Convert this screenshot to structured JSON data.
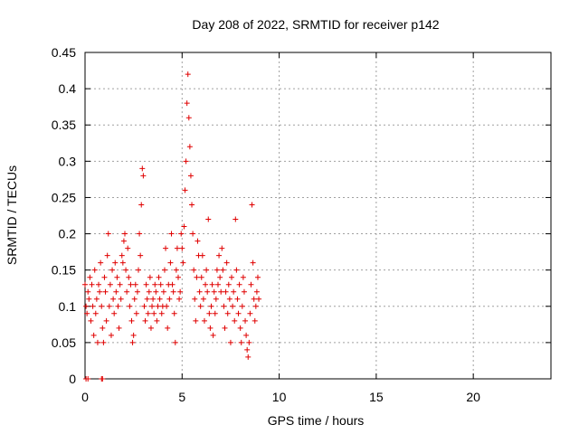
{
  "chart_data": {
    "type": "scatter",
    "title": "Day 208 of 2022, SRMTID for receiver p142",
    "xlabel": "GPS time / hours",
    "ylabel": "SRMTID / TECUs",
    "xlim": [
      0,
      24
    ],
    "ylim": [
      0,
      0.45
    ],
    "xticks": [
      "0",
      "5",
      "10",
      "15",
      "20"
    ],
    "yticks": [
      "0",
      "0.05",
      "0.1",
      "0.15",
      "0.2",
      "0.25",
      "0.3",
      "0.35",
      "0.4",
      "0.45"
    ],
    "grid": true,
    "marker": "+",
    "color": "#e00000",
    "series": [
      {
        "name": "SRMTID",
        "points": [
          [
            0.05,
            0.0
          ],
          [
            0.15,
            0.0
          ],
          [
            0.85,
            0.0
          ],
          [
            0.9,
            0.0
          ],
          [
            0.0,
            0.13
          ],
          [
            0.05,
            0.1
          ],
          [
            0.1,
            0.09
          ],
          [
            0.15,
            0.12
          ],
          [
            0.2,
            0.11
          ],
          [
            0.25,
            0.14
          ],
          [
            0.3,
            0.08
          ],
          [
            0.35,
            0.13
          ],
          [
            0.4,
            0.1
          ],
          [
            0.45,
            0.06
          ],
          [
            0.5,
            0.15
          ],
          [
            0.55,
            0.09
          ],
          [
            0.6,
            0.11
          ],
          [
            0.65,
            0.05
          ],
          [
            0.7,
            0.13
          ],
          [
            0.75,
            0.12
          ],
          [
            0.8,
            0.16
          ],
          [
            0.85,
            0.1
          ],
          [
            0.9,
            0.07
          ],
          [
            0.95,
            0.05
          ],
          [
            1.0,
            0.14
          ],
          [
            1.05,
            0.12
          ],
          [
            1.1,
            0.08
          ],
          [
            1.15,
            0.17
          ],
          [
            1.2,
            0.2
          ],
          [
            1.25,
            0.1
          ],
          [
            1.3,
            0.13
          ],
          [
            1.35,
            0.06
          ],
          [
            1.4,
            0.15
          ],
          [
            1.45,
            0.11
          ],
          [
            1.5,
            0.09
          ],
          [
            1.55,
            0.16
          ],
          [
            1.6,
            0.12
          ],
          [
            1.65,
            0.14
          ],
          [
            1.7,
            0.1
          ],
          [
            1.75,
            0.07
          ],
          [
            1.8,
            0.13
          ],
          [
            1.85,
            0.11
          ],
          [
            1.9,
            0.17
          ],
          [
            1.95,
            0.16
          ],
          [
            2.0,
            0.19
          ],
          [
            2.05,
            0.2
          ],
          [
            2.1,
            0.15
          ],
          [
            2.15,
            0.12
          ],
          [
            2.2,
            0.18
          ],
          [
            2.25,
            0.14
          ],
          [
            2.3,
            0.1
          ],
          [
            2.35,
            0.13
          ],
          [
            2.4,
            0.08
          ],
          [
            2.45,
            0.05
          ],
          [
            2.5,
            0.06
          ],
          [
            2.55,
            0.11
          ],
          [
            2.6,
            0.13
          ],
          [
            2.65,
            0.09
          ],
          [
            2.7,
            0.12
          ],
          [
            2.75,
            0.15
          ],
          [
            2.8,
            0.2
          ],
          [
            2.85,
            0.17
          ],
          [
            2.9,
            0.24
          ],
          [
            2.95,
            0.29
          ],
          [
            3.0,
            0.28
          ],
          [
            3.05,
            0.1
          ],
          [
            3.1,
            0.08
          ],
          [
            3.15,
            0.13
          ],
          [
            3.2,
            0.11
          ],
          [
            3.25,
            0.09
          ],
          [
            3.3,
            0.12
          ],
          [
            3.35,
            0.14
          ],
          [
            3.4,
            0.07
          ],
          [
            3.45,
            0.1
          ],
          [
            3.5,
            0.11
          ],
          [
            3.55,
            0.09
          ],
          [
            3.6,
            0.13
          ],
          [
            3.65,
            0.12
          ],
          [
            3.7,
            0.08
          ],
          [
            3.75,
            0.1
          ],
          [
            3.8,
            0.14
          ],
          [
            3.85,
            0.11
          ],
          [
            3.9,
            0.13
          ],
          [
            3.95,
            0.09
          ],
          [
            4.0,
            0.1
          ],
          [
            4.05,
            0.12
          ],
          [
            4.1,
            0.15
          ],
          [
            4.15,
            0.18
          ],
          [
            4.2,
            0.1
          ],
          [
            4.25,
            0.07
          ],
          [
            4.3,
            0.13
          ],
          [
            4.35,
            0.11
          ],
          [
            4.4,
            0.16
          ],
          [
            4.45,
            0.2
          ],
          [
            4.5,
            0.13
          ],
          [
            4.55,
            0.12
          ],
          [
            4.6,
            0.09
          ],
          [
            4.65,
            0.05
          ],
          [
            4.7,
            0.15
          ],
          [
            4.75,
            0.18
          ],
          [
            4.8,
            0.14
          ],
          [
            4.85,
            0.11
          ],
          [
            4.9,
            0.12
          ],
          [
            4.95,
            0.2
          ],
          [
            5.0,
            0.18
          ],
          [
            5.05,
            0.16
          ],
          [
            5.1,
            0.21
          ],
          [
            5.15,
            0.26
          ],
          [
            5.2,
            0.3
          ],
          [
            5.25,
            0.38
          ],
          [
            5.3,
            0.42
          ],
          [
            5.35,
            0.36
          ],
          [
            5.4,
            0.32
          ],
          [
            5.45,
            0.28
          ],
          [
            5.5,
            0.24
          ],
          [
            5.55,
            0.2
          ],
          [
            5.6,
            0.15
          ],
          [
            5.65,
            0.11
          ],
          [
            5.7,
            0.08
          ],
          [
            5.75,
            0.14
          ],
          [
            5.8,
            0.19
          ],
          [
            5.85,
            0.17
          ],
          [
            5.9,
            0.12
          ],
          [
            5.95,
            0.1
          ],
          [
            6.0,
            0.14
          ],
          [
            6.05,
            0.17
          ],
          [
            6.1,
            0.11
          ],
          [
            6.15,
            0.08
          ],
          [
            6.2,
            0.13
          ],
          [
            6.25,
            0.15
          ],
          [
            6.3,
            0.12
          ],
          [
            6.35,
            0.22
          ],
          [
            6.4,
            0.09
          ],
          [
            6.45,
            0.07
          ],
          [
            6.5,
            0.1
          ],
          [
            6.55,
            0.13
          ],
          [
            6.6,
            0.06
          ],
          [
            6.65,
            0.12
          ],
          [
            6.7,
            0.09
          ],
          [
            6.75,
            0.11
          ],
          [
            6.8,
            0.15
          ],
          [
            6.85,
            0.13
          ],
          [
            6.9,
            0.17
          ],
          [
            6.95,
            0.14
          ],
          [
            7.0,
            0.12
          ],
          [
            7.05,
            0.18
          ],
          [
            7.1,
            0.15
          ],
          [
            7.15,
            0.1
          ],
          [
            7.2,
            0.07
          ],
          [
            7.25,
            0.12
          ],
          [
            7.3,
            0.16
          ],
          [
            7.35,
            0.09
          ],
          [
            7.4,
            0.13
          ],
          [
            7.45,
            0.11
          ],
          [
            7.5,
            0.05
          ],
          [
            7.55,
            0.14
          ],
          [
            7.6,
            0.1
          ],
          [
            7.65,
            0.12
          ],
          [
            7.7,
            0.08
          ],
          [
            7.75,
            0.22
          ],
          [
            7.8,
            0.15
          ],
          [
            7.85,
            0.11
          ],
          [
            7.9,
            0.09
          ],
          [
            7.95,
            0.13
          ],
          [
            8.0,
            0.07
          ],
          [
            8.05,
            0.05
          ],
          [
            8.1,
            0.1
          ],
          [
            8.15,
            0.14
          ],
          [
            8.2,
            0.12
          ],
          [
            8.25,
            0.08
          ],
          [
            8.3,
            0.06
          ],
          [
            8.35,
            0.04
          ],
          [
            8.4,
            0.03
          ],
          [
            8.45,
            0.05
          ],
          [
            8.5,
            0.09
          ],
          [
            8.55,
            0.13
          ],
          [
            8.6,
            0.24
          ],
          [
            8.65,
            0.16
          ],
          [
            8.7,
            0.11
          ],
          [
            8.75,
            0.08
          ],
          [
            8.8,
            0.1
          ],
          [
            8.85,
            0.12
          ],
          [
            8.9,
            0.14
          ],
          [
            8.95,
            0.11
          ]
        ]
      }
    ]
  }
}
